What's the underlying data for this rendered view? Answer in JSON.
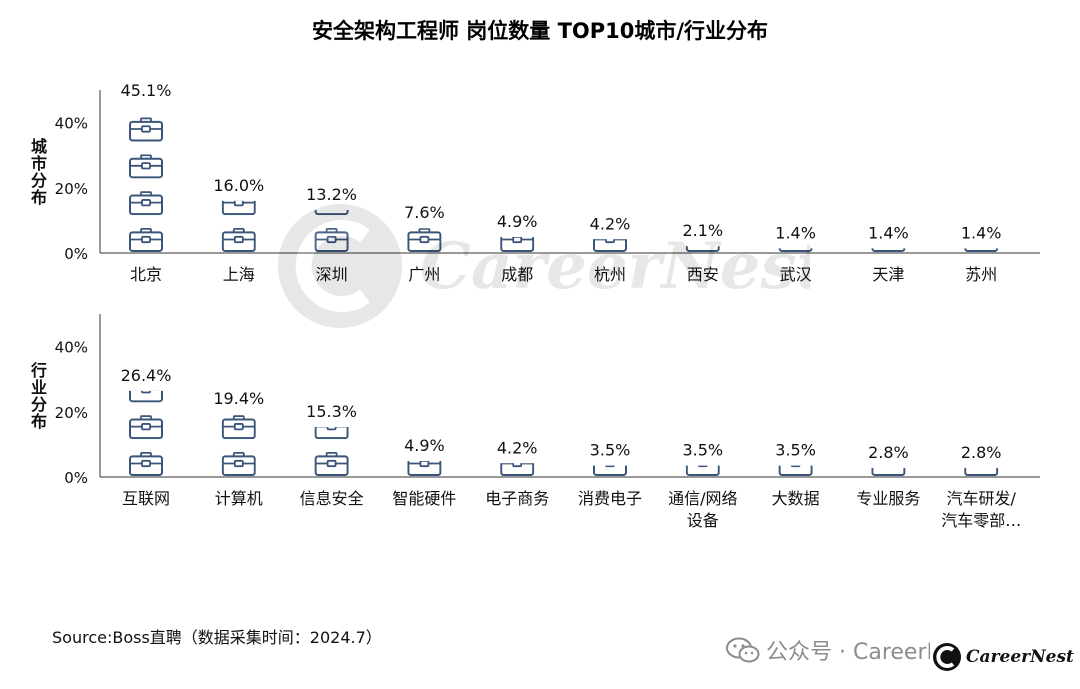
{
  "title": "安全架构工程师 岗位数量 TOP10城市/行业分布",
  "source_text": "Source:Boss直聘（数据采集时间：2024.7）",
  "footer": {
    "account": "公众号 · CareerNest",
    "brand": "CareerNest"
  },
  "watermark": "CareerNest",
  "colors": {
    "icon": "#3a5579",
    "axis": "#333333"
  },
  "icons": {
    "unit": "briefcase-icon",
    "footer": "wechat-icon"
  },
  "chart_data": [
    {
      "type": "bar",
      "ylabel": "城市分布",
      "ylim": [
        0,
        50
      ],
      "yticks": [
        "0%",
        "20%",
        "40%"
      ],
      "unit_per_icon": 11.3,
      "categories": [
        "北京",
        "上海",
        "深圳",
        "广州",
        "成都",
        "杭州",
        "西安",
        "武汉",
        "天津",
        "苏州"
      ],
      "values": [
        45.1,
        16.0,
        13.2,
        7.6,
        4.9,
        4.2,
        2.1,
        1.4,
        1.4,
        1.4
      ],
      "labels": [
        "45.1%",
        "16.0%",
        "13.2%",
        "7.6%",
        "4.9%",
        "4.2%",
        "2.1%",
        "1.4%",
        "1.4%",
        "1.4%"
      ]
    },
    {
      "type": "bar",
      "ylabel": "行业分布",
      "ylim": [
        0,
        50
      ],
      "yticks": [
        "0%",
        "20%",
        "40%"
      ],
      "unit_per_icon": 11.3,
      "categories": [
        "互联网",
        "计算机",
        "信息安全",
        "智能硬件",
        "电子商务",
        "消费电子",
        "通信/网络\n设备",
        "大数据",
        "专业服务",
        "汽车研发/\n汽车零部…"
      ],
      "values": [
        26.4,
        19.4,
        15.3,
        4.9,
        4.2,
        3.5,
        3.5,
        3.5,
        2.8,
        2.8
      ],
      "labels": [
        "26.4%",
        "19.4%",
        "15.3%",
        "4.9%",
        "4.2%",
        "3.5%",
        "3.5%",
        "3.5%",
        "2.8%",
        "2.8%"
      ]
    }
  ]
}
